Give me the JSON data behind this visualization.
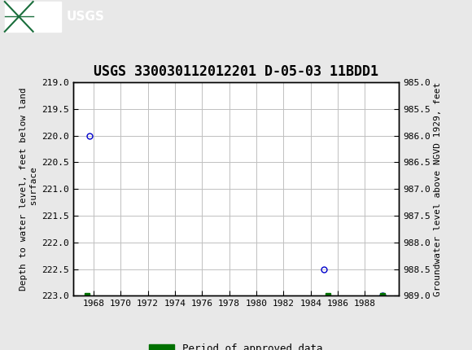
{
  "title": "USGS 330030112012201 D-05-03 11BDD1",
  "ylabel_left": "Depth to water level, feet below land\n surface",
  "ylabel_right": "Groundwater level above NGVD 1929, feet",
  "ylim_left": [
    219.0,
    223.0
  ],
  "ylim_right": [
    989.0,
    985.0
  ],
  "xlim": [
    1966.5,
    1990.5
  ],
  "xticks": [
    1968,
    1970,
    1972,
    1974,
    1976,
    1978,
    1980,
    1982,
    1984,
    1986,
    1988
  ],
  "yticks_left": [
    219.0,
    219.5,
    220.0,
    220.5,
    221.0,
    221.5,
    222.0,
    222.5,
    223.0
  ],
  "yticks_right": [
    989.0,
    988.5,
    988.0,
    987.5,
    987.0,
    986.5,
    986.0,
    985.5,
    985.0
  ],
  "circle_points_x": [
    1967.7,
    1985.0,
    1989.3
  ],
  "circle_points_y": [
    220.0,
    222.5,
    223.0
  ],
  "green_points_x": [
    1967.5,
    1985.3,
    1989.3
  ],
  "green_points_y": [
    223.0,
    223.0,
    223.0
  ],
  "circle_color": "#0000cc",
  "green_color": "#007000",
  "bg_color": "#e8e8e8",
  "plot_bg_color": "#ffffff",
  "grid_color": "#c0c0c0",
  "header_bg": "#1a6e3c",
  "title_fontsize": 12,
  "tick_fontsize": 8,
  "label_fontsize": 8,
  "legend_label": "Period of approved data",
  "legend_fontsize": 9
}
